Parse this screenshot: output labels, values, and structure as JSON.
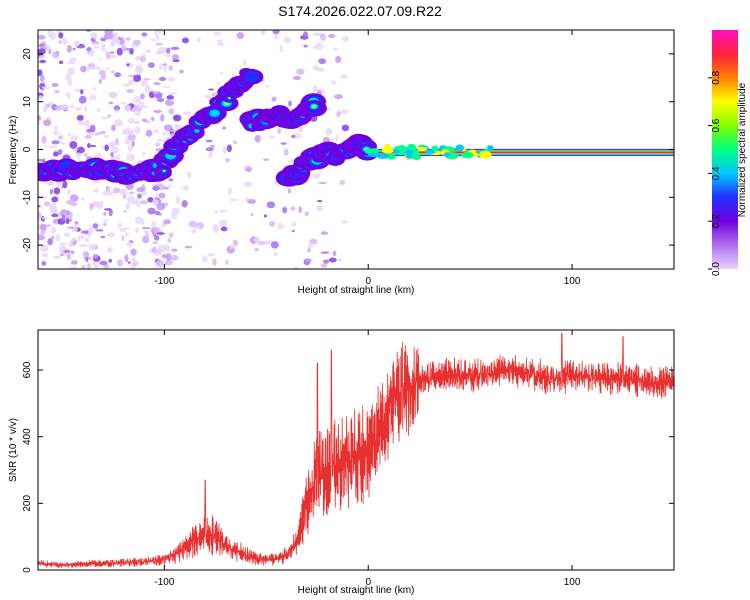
{
  "title": "S174.2026.022.07.09.R22",
  "chart_data": [
    {
      "type": "heatmap",
      "name": "spectrogram",
      "xlabel": "Height of straight line (km)",
      "ylabel": "Frequency (Hz)",
      "xlim": [
        -162,
        150
      ],
      "ylim": [
        -25,
        25
      ],
      "xticks": [
        -100,
        0,
        100
      ],
      "xtick_labels": [
        "-100",
        "0",
        "100"
      ],
      "yticks": [
        -20,
        -10,
        0,
        10,
        20
      ],
      "ytick_labels": [
        "-20",
        "-10",
        "0",
        "10",
        "20"
      ],
      "colorbar": {
        "label": "Normalized spectral amplitude",
        "range": [
          0,
          1
        ],
        "ticks": [
          0.0,
          0.2,
          0.4,
          0.6,
          0.8
        ],
        "tick_labels": [
          "0.0",
          "0.2",
          "0.4",
          "0.6",
          "0.8"
        ],
        "colors": [
          "#e8d4f8",
          "#b070f0",
          "#7000e0",
          "#2030ff",
          "#00c8ff",
          "#00ff80",
          "#80ff00",
          "#ffff00",
          "#ff8000",
          "#ff2040",
          "#ff10c0"
        ]
      },
      "ridge_segments": [
        {
          "name": "low-left",
          "points": [
            [
              -162,
              -4
            ],
            [
              -150,
              -4
            ],
            [
              -135,
              -4
            ],
            [
              -120,
              -5
            ],
            [
              -110,
              -5
            ],
            [
              -100,
              -4
            ]
          ]
        },
        {
          "name": "rising",
          "points": [
            [
              -100,
              -3
            ],
            [
              -95,
              0
            ],
            [
              -88,
              3
            ],
            [
              -80,
              6
            ],
            [
              -72,
              10
            ],
            [
              -64,
              13
            ],
            [
              -58,
              16
            ]
          ]
        },
        {
          "name": "mid-ridge",
          "points": [
            [
              -58,
              6
            ],
            [
              -50,
              6
            ],
            [
              -44,
              7
            ],
            [
              -38,
              6
            ],
            [
              -30,
              8
            ],
            [
              -26,
              10
            ]
          ]
        },
        {
          "name": "descending",
          "points": [
            [
              -38,
              -6
            ],
            [
              -33,
              -4
            ],
            [
              -28,
              -2
            ],
            [
              -22,
              -1
            ],
            [
              -15,
              -1
            ],
            [
              -8,
              0
            ],
            [
              -5,
              1
            ],
            [
              0,
              0
            ]
          ]
        },
        {
          "name": "flat",
          "points": [
            [
              0,
              0
            ],
            [
              20,
              0
            ],
            [
              40,
              0
            ],
            [
              60,
              -1
            ],
            [
              80,
              -1
            ],
            [
              100,
              -1
            ],
            [
              120,
              -1
            ],
            [
              150,
              -1
            ]
          ]
        }
      ]
    },
    {
      "type": "line",
      "name": "snr",
      "series_name": "SNR",
      "color": "#e83030",
      "xlabel": "Height of straight line (km)",
      "ylabel": "SNR (10 * v/v)",
      "xlim": [
        -162,
        150
      ],
      "ylim": [
        0,
        720
      ],
      "xticks": [
        -100,
        0,
        100
      ],
      "xtick_labels": [
        "-100",
        "0",
        "100"
      ],
      "yticks": [
        0,
        200,
        400,
        600
      ],
      "ytick_labels": [
        "0",
        "200",
        "400",
        "600"
      ],
      "x": [
        -162,
        -150,
        -140,
        -130,
        -120,
        -110,
        -100,
        -95,
        -90,
        -85,
        -80,
        -75,
        -70,
        -65,
        -60,
        -55,
        -50,
        -45,
        -40,
        -35,
        -30,
        -25,
        -20,
        -15,
        -10,
        -5,
        0,
        5,
        10,
        15,
        20,
        25,
        30,
        40,
        50,
        60,
        70,
        80,
        90,
        100,
        110,
        120,
        130,
        140,
        150
      ],
      "y": [
        20,
        15,
        18,
        20,
        22,
        25,
        30,
        45,
        70,
        90,
        110,
        100,
        70,
        60,
        45,
        35,
        30,
        35,
        45,
        90,
        200,
        280,
        300,
        320,
        330,
        340,
        360,
        410,
        470,
        520,
        550,
        565,
        575,
        590,
        580,
        590,
        600,
        590,
        570,
        585,
        580,
        575,
        570,
        560,
        575
      ],
      "peaks": [
        [
          -80,
          270
        ],
        [
          -18,
          660
        ],
        [
          -25,
          620
        ],
        [
          95,
          710
        ],
        [
          125,
          700
        ]
      ]
    }
  ]
}
